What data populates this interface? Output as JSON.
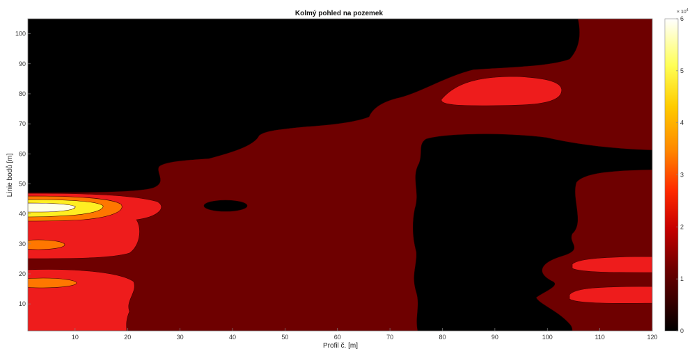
{
  "chart_data": {
    "type": "heatmap",
    "title": "Kolmý pohled na pozemek",
    "xlabel": "Profil č. [m]",
    "ylabel": "Linie bodů [m]",
    "xlim": [
      1,
      120
    ],
    "ylim": [
      1,
      105
    ],
    "xticks": [
      10,
      20,
      30,
      40,
      50,
      60,
      70,
      80,
      90,
      100,
      110,
      120
    ],
    "yticks": [
      10,
      20,
      30,
      40,
      50,
      60,
      70,
      80,
      90,
      100
    ],
    "colormap": "hot",
    "colorbar": {
      "range": [
        0,
        6
      ],
      "ticks": [
        0,
        1,
        2,
        3,
        4,
        5,
        6
      ],
      "exponent_label": "× 10",
      "exponent": "4",
      "colors": [
        "#000000",
        "#4a0000",
        "#6e0000",
        "#c80000",
        "#f01e1e",
        "#ff6600",
        "#ffbb00",
        "#ffff33",
        "#ffffcc",
        "#ffffff"
      ]
    },
    "contour_levels": [
      {
        "level": "low",
        "color": "#6e0000"
      },
      {
        "level": "zero",
        "color": "#000000"
      },
      {
        "level": "mid",
        "color": "#ee1c1c"
      },
      {
        "level": "orange",
        "color": "#ff7700"
      },
      {
        "level": "yellow",
        "color": "#ffee22"
      },
      {
        "level": "peak",
        "color": "#ffffe8"
      }
    ],
    "grid": false
  }
}
